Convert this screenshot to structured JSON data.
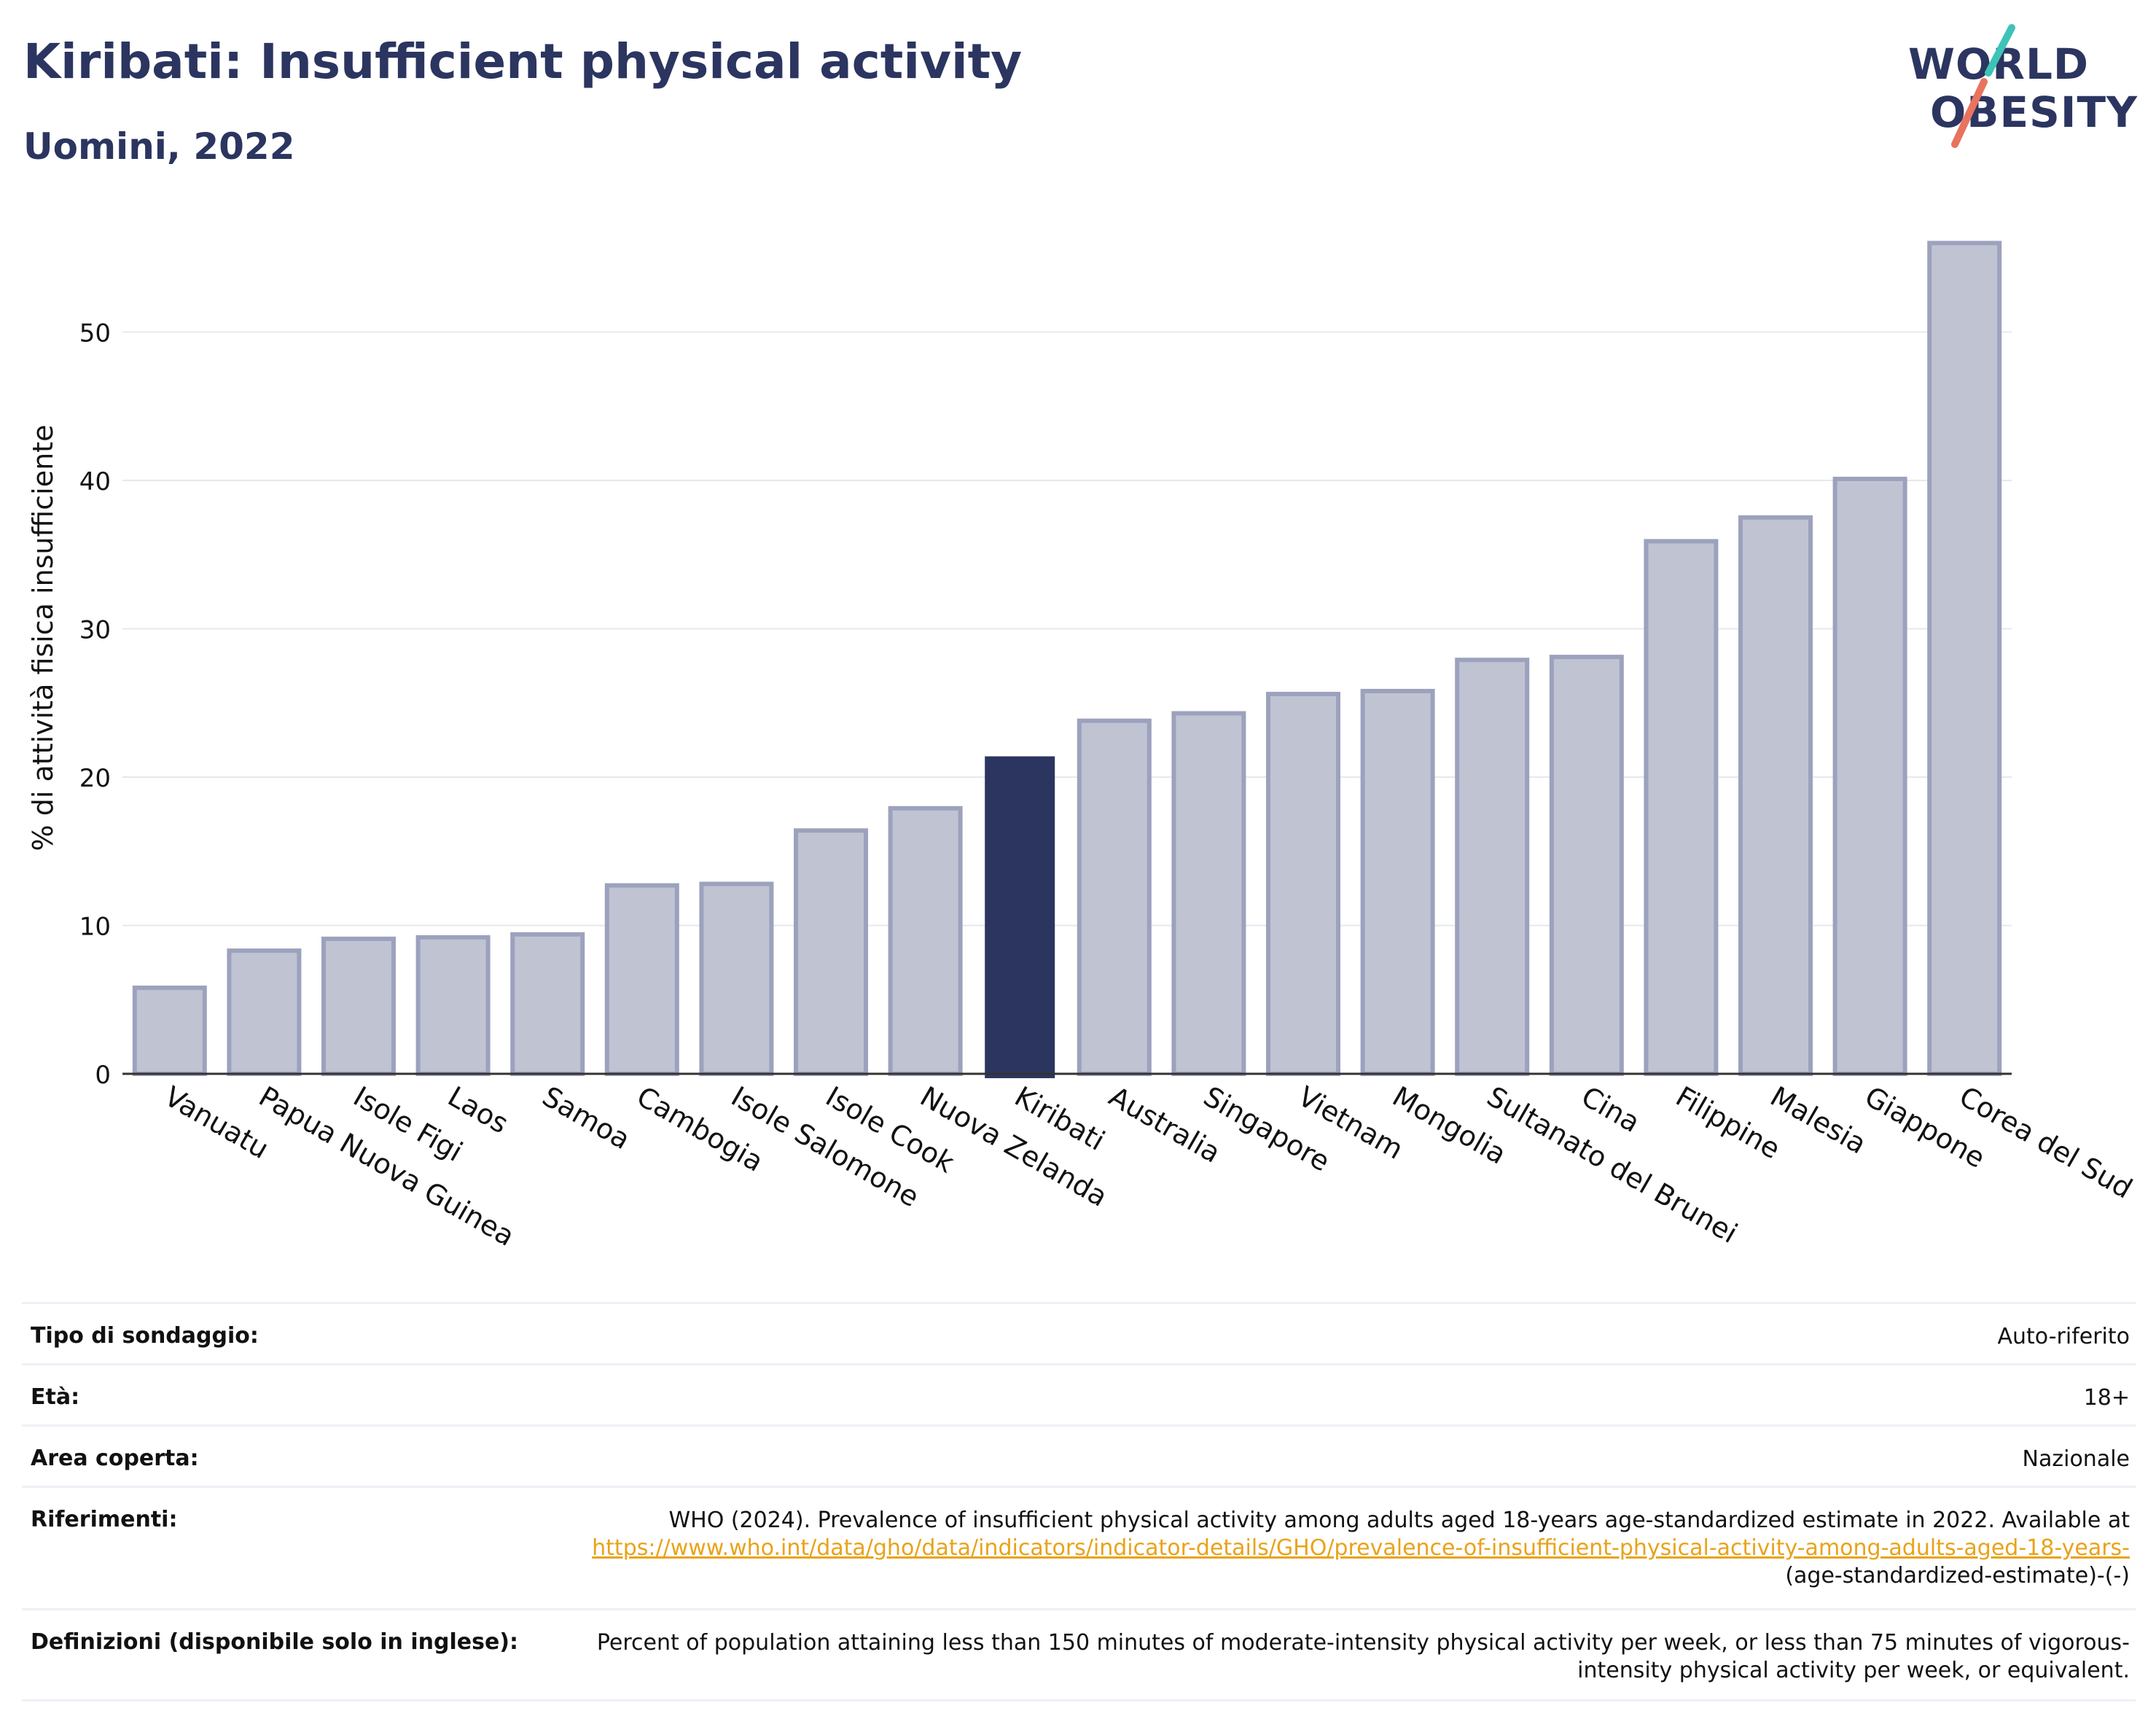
{
  "header": {
    "title": "Kiribati: Insufficient physical activity",
    "subtitle": "Uomini, 2022",
    "logo_line1": "WORLD",
    "logo_line2": "OBESITY"
  },
  "colors": {
    "highlight_bar": "#2b3560",
    "other_bar": "#c0c3d2",
    "other_bar_stroke": "#9ca2bd",
    "title": "#2b3560",
    "link": "#e8a31a",
    "logo_slash_teal": "#3ec3b8",
    "logo_slash_coral": "#e8735f"
  },
  "chart_data": {
    "type": "bar",
    "title": "Kiribati: Insufficient physical activity",
    "subtitle": "Uomini, 2022",
    "xlabel": "",
    "ylabel": "% di attività fisica insufficiente",
    "categories": [
      "Vanuatu",
      "Papua Nuova Guinea",
      "Isole Figi",
      "Laos",
      "Samoa",
      "Cambogia",
      "Isole Salomone",
      "Isole Cook",
      "Nuova Zelanda",
      "Kiribati",
      "Australia",
      "Singapore",
      "Vietnam",
      "Mongolia",
      "Sultanato del Brunei",
      "Cina",
      "Filippine",
      "Malesia",
      "Giappone",
      "Corea del Sud"
    ],
    "values": [
      5.8,
      8.3,
      9.1,
      9.2,
      9.4,
      12.7,
      12.8,
      16.4,
      17.9,
      21.4,
      23.8,
      24.3,
      25.6,
      25.8,
      27.9,
      28.1,
      35.9,
      37.5,
      40.1,
      56.0
    ],
    "highlight": "Kiribati",
    "yticks": [
      0,
      10,
      20,
      30,
      40,
      50
    ],
    "ylim": [
      0,
      59
    ],
    "grid": true,
    "legend": "none"
  },
  "meta": [
    {
      "label": "Tipo di sondaggio:",
      "value": "Auto-riferito"
    },
    {
      "label": "Età:",
      "value": "18+"
    },
    {
      "label": "Area coperta:",
      "value": "Nazionale"
    },
    {
      "label": "Riferimenti:",
      "value": "WHO (2024). Prevalence of insufficient physical activity among adults aged 18-years age-standardized estimate in 2022. Available at",
      "link": "https://www.who.int/data/gho/data/indicators/indicator-details/GHO/prevalence-of-insufficient-physical-activity-among-adults-aged-18-years-",
      "value_suffix": "(age-standardized-estimate)-(-)"
    },
    {
      "label": "Definizioni (disponibile solo in inglese):",
      "value": "Percent of population attaining less than 150 minutes of moderate-intensity physical activity per week, or less than 75 minutes of vigorous-intensity physical activity per week, or equivalent."
    }
  ]
}
